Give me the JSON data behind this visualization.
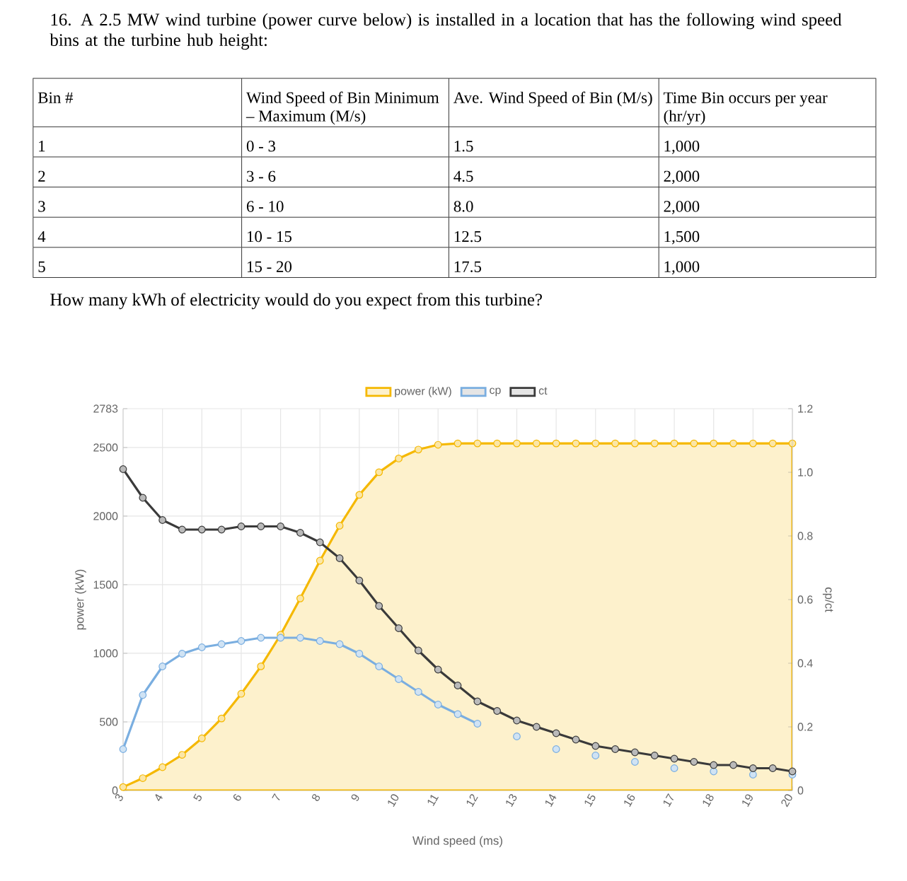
{
  "chart_data": {
    "type": "line",
    "title": "16.  A 2.5 MW wind turbine (power curve below) is installed in a location that has the following wind speed bins at the turbine hub height:",
    "annotations": [
      "Bin #",
      "Wind Speed of Bin Minimum – Maximum (M/s)",
      "Ave. Wind Speed of Bin (M/s)",
      "Time Bin occurs per year (hr/yr)",
      "1",
      "0 - 3",
      "1.5",
      "1,000",
      "2",
      "3 - 6",
      "4.5",
      "2,000",
      "3",
      "6 - 10",
      "8.0",
      "2,000",
      "4",
      "10 - 15",
      "12.5",
      "1,500",
      "5",
      "15 - 20",
      "17.5",
      "1,000",
      "How many kWh of electricity would do you expect from this turbine?"
    ],
    "xlabel": "Wind speed (ms)",
    "ylabel": "power (kW)",
    "y2label": "cp/ct",
    "x": [
      3,
      3.5,
      4,
      4.5,
      5,
      5.5,
      6,
      6.5,
      7,
      7.5,
      8,
      8.5,
      9,
      9.5,
      10,
      10.5,
      11,
      11.5,
      12,
      12.5,
      13,
      13.5,
      14,
      14.5,
      15,
      15.5,
      16,
      16.5,
      17,
      17.5,
      18,
      18.5,
      19,
      19.5,
      20
    ],
    "xlim": [
      3,
      20
    ],
    "xticks": [
      3,
      4,
      5,
      6,
      7,
      8,
      9,
      10,
      11,
      12,
      13,
      14,
      15,
      16,
      17,
      18,
      19,
      20
    ],
    "ylim": [
      0,
      2783
    ],
    "yticks": [
      0,
      500,
      1000,
      1500,
      2000,
      2500,
      2783
    ],
    "y2lim": [
      0,
      1.2
    ],
    "y2ticks": [
      0,
      0.2,
      0.4,
      0.6,
      0.8,
      {
        "value": 1,
        "label": "1.0"
      },
      1.2
    ],
    "grid": true,
    "legend": "top",
    "marker": "circle",
    "series": [
      {
        "name": "power (kW)",
        "type": "area",
        "color": "#f5b800",
        "values": [
          25,
          90,
          170,
          260,
          380,
          525,
          705,
          905,
          1135,
          1400,
          1675,
          1930,
          2155,
          2320,
          2420,
          2485,
          2520,
          2530,
          2530,
          2530,
          2530,
          2530,
          2530,
          2530,
          2530,
          2530,
          2530,
          2530,
          2530,
          2530,
          2530,
          2530,
          2530,
          2530,
          2530
        ]
      },
      {
        "name": "cp",
        "axis": "y2",
        "color": "#7aaee0",
        "values": [
          0.13,
          0.3,
          0.39,
          0.43,
          0.45,
          0.46,
          0.47,
          0.48,
          0.48,
          0.48,
          0.47,
          0.46,
          0.43,
          0.39,
          0.35,
          0.31,
          0.27,
          0.24,
          0.21,
          null,
          0.17,
          null,
          0.13,
          null,
          0.11,
          null,
          0.09,
          null,
          0.07,
          null,
          0.06,
          null,
          0.05,
          null,
          0.05
        ]
      },
      {
        "name": "ct",
        "axis": "y2",
        "color": "#3a3a3a",
        "values": [
          1.01,
          0.92,
          0.85,
          0.82,
          0.82,
          0.82,
          0.83,
          0.83,
          0.83,
          0.81,
          0.78,
          0.73,
          0.66,
          0.58,
          0.51,
          0.44,
          0.38,
          0.33,
          0.28,
          0.25,
          0.22,
          0.2,
          0.18,
          0.16,
          0.14,
          0.13,
          0.12,
          0.11,
          0.1,
          0.09,
          0.08,
          0.08,
          0.07,
          0.07,
          0.06
        ]
      }
    ]
  }
}
